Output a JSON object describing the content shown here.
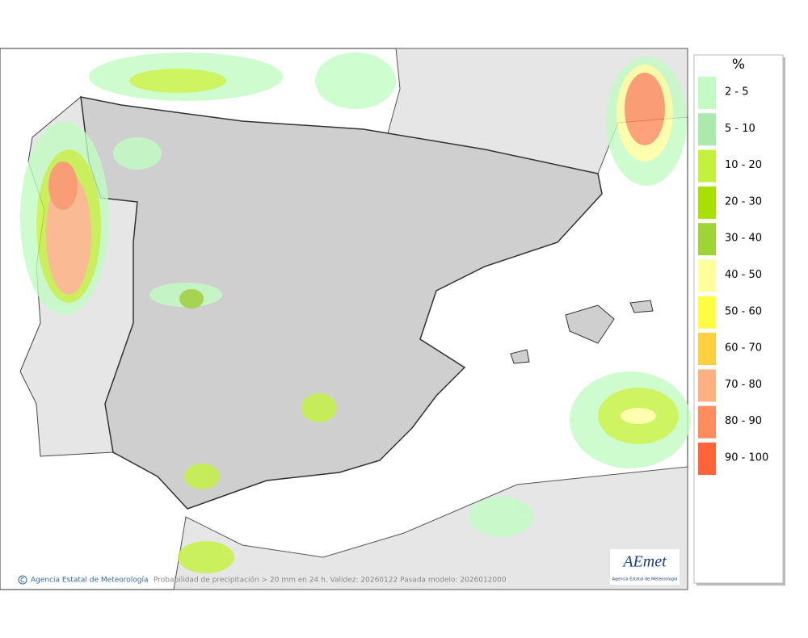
{
  "legend": {
    "title": "%",
    "items": [
      {
        "label": "2 - 5",
        "color": "#c2fcc4"
      },
      {
        "label": "5 - 10",
        "color": "#aaeaac"
      },
      {
        "label": "10 - 20",
        "color": "#c4f23c"
      },
      {
        "label": "20 - 30",
        "color": "#aae000"
      },
      {
        "label": "30 - 40",
        "color": "#9ed434"
      },
      {
        "label": "40 - 50",
        "color": "#fefe9c"
      },
      {
        "label": "50 - 60",
        "color": "#fefe40"
      },
      {
        "label": "60 - 70",
        "color": "#fed040"
      },
      {
        "label": "70 - 80",
        "color": "#feb080"
      },
      {
        "label": "80 - 90",
        "color": "#fe8c5c"
      },
      {
        "label": "90 - 100",
        "color": "#fe6438"
      }
    ]
  },
  "footer": {
    "credit": "Agencia Estatal de Meteorología",
    "caption": "Probabilidad de precipitación > 20 mm en 24 h. Validez: 20260122 Pasada modelo: 2026012000"
  },
  "logo": {
    "name": "AEmet",
    "subtitle": "Agencia Estatal de Meteorología"
  }
}
